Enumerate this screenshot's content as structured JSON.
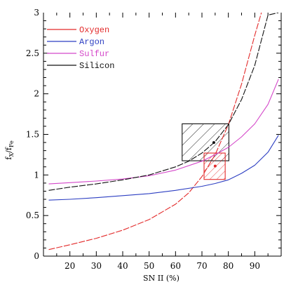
{
  "chart_data": {
    "type": "line",
    "xlabel": "SN II (%)",
    "ylabel": "f_X / f_Fe",
    "xlim": [
      10,
      100
    ],
    "ylim": [
      0,
      3
    ],
    "xticks": [
      20,
      30,
      40,
      50,
      60,
      70,
      80,
      90
    ],
    "yticks": [
      0,
      0.5,
      1,
      1.5,
      2,
      2.5,
      3
    ],
    "ytick_labels": [
      "0",
      "0.5",
      "1",
      "1.5",
      "2",
      "2.5",
      "3"
    ],
    "legend_position": "top-left",
    "series": [
      {
        "name": "Oxygen",
        "color": "#e32b2b",
        "dash": "dashed",
        "x": [
          12,
          20,
          30,
          40,
          50,
          60,
          65,
          70,
          75,
          80,
          85,
          90,
          92.5
        ],
        "y": [
          0.08,
          0.14,
          0.22,
          0.32,
          0.45,
          0.64,
          0.78,
          0.98,
          1.25,
          1.62,
          2.12,
          2.72,
          3.0
        ]
      },
      {
        "name": "Argon",
        "color": "#2c3ec2",
        "dash": "solid",
        "x": [
          12,
          20,
          30,
          40,
          50,
          60,
          70,
          75,
          80,
          85,
          90,
          95,
          99
        ],
        "y": [
          0.69,
          0.7,
          0.72,
          0.745,
          0.77,
          0.81,
          0.86,
          0.895,
          0.94,
          1.02,
          1.12,
          1.28,
          1.49
        ]
      },
      {
        "name": "Sulfur",
        "color": "#d447c9",
        "dash": "solid",
        "x": [
          12,
          20,
          30,
          40,
          50,
          60,
          70,
          75,
          80,
          85,
          90,
          95,
          99
        ],
        "y": [
          0.89,
          0.905,
          0.925,
          0.95,
          0.99,
          1.06,
          1.17,
          1.25,
          1.34,
          1.47,
          1.63,
          1.87,
          2.18
        ]
      },
      {
        "name": "Silicon",
        "color": "#111111",
        "dash": "dashed",
        "x": [
          12,
          20,
          30,
          40,
          50,
          60,
          65,
          70,
          75,
          80,
          85,
          90,
          95,
          99
        ],
        "y": [
          0.81,
          0.85,
          0.89,
          0.94,
          1.0,
          1.1,
          1.17,
          1.27,
          1.41,
          1.62,
          1.93,
          2.35,
          2.97,
          3.0
        ]
      }
    ],
    "boxes": [
      {
        "series": "Silicon",
        "color": "#111111",
        "x": [
          62.5,
          80.2
        ],
        "y": [
          1.175,
          1.63
        ],
        "point": [
          74.5,
          1.4
        ]
      },
      {
        "series": "Oxygen",
        "color": "#e32b2b",
        "x": [
          70.8,
          78.8
        ],
        "y": [
          0.945,
          1.27
        ],
        "point": [
          75,
          1.11
        ]
      }
    ]
  }
}
